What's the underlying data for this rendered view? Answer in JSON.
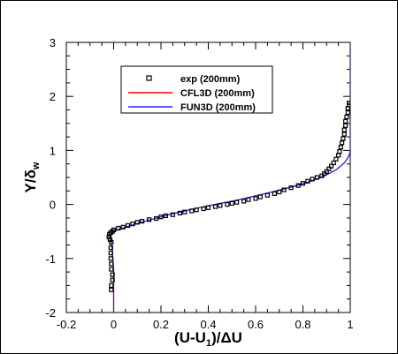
{
  "chart_data": {
    "type": "line",
    "xlabel": {
      "main": "(U-U",
      "sub": "1",
      "rest": ")/ΔU"
    },
    "ylabel": {
      "main": "Y/δ",
      "sub": "w"
    },
    "xlim": [
      -0.2,
      1.0
    ],
    "ylim": [
      -2,
      3
    ],
    "xticks": [
      -0.2,
      0,
      0.2,
      0.4,
      0.6,
      0.8,
      1
    ],
    "xtick_labels": [
      "-0.2",
      "0",
      "0.2",
      "0.4",
      "0.6",
      "0.8",
      "1"
    ],
    "yticks": [
      -2,
      -1,
      0,
      1,
      2,
      3
    ],
    "ytick_labels": [
      "-2",
      "-1",
      "0",
      "1",
      "2",
      "3"
    ],
    "grid": false,
    "legend_position": "top-center",
    "series": [
      {
        "name": "exp (200mm)",
        "kind": "scatter",
        "marker": "open-square",
        "color": "#000000",
        "x": [
          -0.01,
          -0.01,
          -0.005,
          -0.005,
          -0.01,
          -0.01,
          -0.012,
          -0.012,
          -0.012,
          -0.01,
          -0.015,
          -0.02,
          -0.018,
          -0.012,
          -0.005,
          0.0,
          0.02,
          0.04,
          0.06,
          0.08,
          0.1,
          0.12,
          0.15,
          0.18,
          0.2,
          0.22,
          0.25,
          0.28,
          0.3,
          0.33,
          0.35,
          0.38,
          0.4,
          0.43,
          0.45,
          0.48,
          0.5,
          0.52,
          0.55,
          0.57,
          0.6,
          0.62,
          0.65,
          0.68,
          0.7,
          0.72,
          0.75,
          0.78,
          0.8,
          0.82,
          0.84,
          0.86,
          0.88,
          0.89,
          0.9,
          0.91,
          0.92,
          0.93,
          0.94,
          0.95,
          0.955,
          0.96,
          0.965,
          0.97,
          0.975,
          0.975,
          0.98,
          0.98,
          0.985,
          0.99,
          0.99,
          0.995,
          0.995
        ],
        "y": [
          -1.58,
          -1.5,
          -1.4,
          -1.3,
          -1.2,
          -1.1,
          -1.0,
          -0.9,
          -0.8,
          -0.7,
          -0.65,
          -0.6,
          -0.55,
          -0.52,
          -0.5,
          -0.47,
          -0.44,
          -0.42,
          -0.39,
          -0.36,
          -0.33,
          -0.31,
          -0.28,
          -0.26,
          -0.23,
          -0.21,
          -0.19,
          -0.16,
          -0.14,
          -0.12,
          -0.1,
          -0.08,
          -0.06,
          -0.04,
          -0.02,
          0.0,
          0.02,
          0.04,
          0.06,
          0.09,
          0.11,
          0.14,
          0.17,
          0.2,
          0.23,
          0.27,
          0.31,
          0.35,
          0.39,
          0.43,
          0.47,
          0.5,
          0.53,
          0.57,
          0.61,
          0.66,
          0.71,
          0.77,
          0.84,
          0.91,
          0.98,
          1.06,
          1.14,
          1.22,
          1.3,
          1.38,
          1.46,
          1.54,
          1.62,
          1.7,
          1.78,
          1.84,
          1.88
        ]
      },
      {
        "name": "CFL3D (200mm)",
        "kind": "line",
        "color": "#ff0000",
        "x": [
          0.0,
          0.0,
          0.0,
          -0.005,
          -0.01,
          -0.015,
          -0.01,
          0.0,
          0.03,
          0.08,
          0.15,
          0.25,
          0.35,
          0.45,
          0.5,
          0.55,
          0.65,
          0.75,
          0.82,
          0.87,
          0.91,
          0.94,
          0.96,
          0.975,
          0.985,
          0.992,
          0.996,
          0.998,
          0.999,
          1.0,
          1.0
        ],
        "y": [
          -2.0,
          -1.6,
          -1.2,
          -0.9,
          -0.7,
          -0.6,
          -0.55,
          -0.5,
          -0.45,
          -0.38,
          -0.29,
          -0.17,
          -0.07,
          0.02,
          0.06,
          0.11,
          0.21,
          0.32,
          0.41,
          0.49,
          0.57,
          0.64,
          0.71,
          0.77,
          0.83,
          0.88,
          0.92,
          0.95,
          0.97,
          1.0,
          3.0
        ]
      },
      {
        "name": "FUN3D (200mm)",
        "kind": "line",
        "color": "#2222ff",
        "x": [
          0.0,
          0.0,
          0.0,
          -0.005,
          -0.01,
          -0.015,
          -0.01,
          0.0,
          0.03,
          0.08,
          0.15,
          0.25,
          0.35,
          0.45,
          0.5,
          0.55,
          0.65,
          0.75,
          0.82,
          0.87,
          0.91,
          0.94,
          0.96,
          0.975,
          0.985,
          0.992,
          0.996,
          0.998,
          0.999,
          1.0,
          1.0
        ],
        "y": [
          -2.0,
          -1.6,
          -1.2,
          -0.9,
          -0.7,
          -0.6,
          -0.55,
          -0.5,
          -0.45,
          -0.38,
          -0.29,
          -0.17,
          -0.07,
          0.02,
          0.06,
          0.11,
          0.21,
          0.32,
          0.41,
          0.49,
          0.57,
          0.64,
          0.71,
          0.77,
          0.83,
          0.88,
          0.92,
          0.95,
          0.97,
          1.0,
          3.0
        ]
      }
    ]
  }
}
